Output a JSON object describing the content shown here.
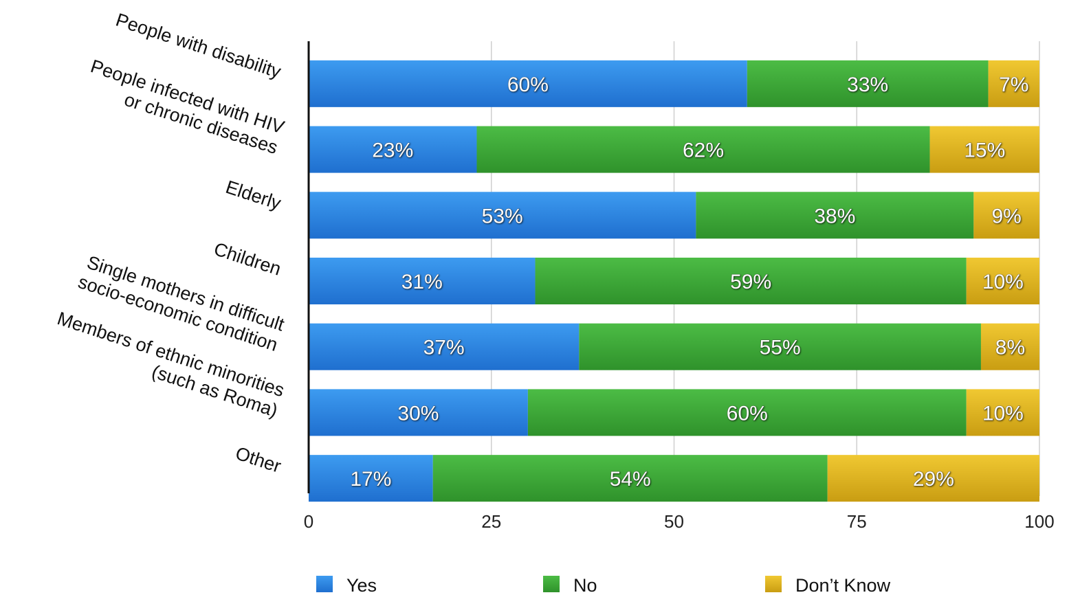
{
  "chart_data": {
    "type": "bar",
    "orientation": "horizontal",
    "stacked": true,
    "categories": [
      [
        "People with disability"
      ],
      [
        "People infected with HIV",
        "or chronic diseases"
      ],
      [
        "Elderly"
      ],
      [
        "Children"
      ],
      [
        "Single mothers in difficult",
        "socio-economic condition"
      ],
      [
        "Members of ethnic minorities",
        "(such as Roma)"
      ],
      [
        "Other"
      ]
    ],
    "series": [
      {
        "name": "Yes",
        "values": [
          60,
          23,
          53,
          31,
          37,
          30,
          17
        ],
        "color": "#2f86e0"
      },
      {
        "name": "No",
        "values": [
          33,
          62,
          38,
          59,
          55,
          60,
          54
        ],
        "color": "#3fa83a"
      },
      {
        "name": "Don’t Know",
        "values": [
          7,
          15,
          9,
          10,
          8,
          10,
          29
        ],
        "color": "#e0b81f"
      }
    ],
    "value_suffix": "%",
    "xlim": [
      0,
      100
    ],
    "xticks": [
      0,
      25,
      50,
      75,
      100
    ],
    "grid": true,
    "legend_position": "bottom"
  }
}
